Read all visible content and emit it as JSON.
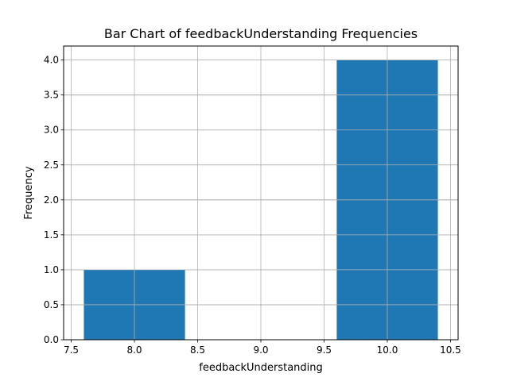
{
  "chart_data": {
    "type": "bar",
    "title": "Bar Chart of feedbackUnderstanding Frequencies",
    "xlabel": "feedbackUnderstanding",
    "ylabel": "Frequency",
    "x": [
      8,
      10
    ],
    "values": [
      1,
      4
    ],
    "bar_width": 0.8,
    "xlim": [
      7.44,
      10.56
    ],
    "ylim": [
      0,
      4.2
    ],
    "xticks": [
      7.5,
      8.0,
      8.5,
      9.0,
      9.5,
      10.0,
      10.5
    ],
    "xtick_labels": [
      "7.5",
      "8.0",
      "8.5",
      "9.0",
      "9.5",
      "10.0",
      "10.5"
    ],
    "yticks": [
      0,
      0.5,
      1.0,
      1.5,
      2.0,
      2.5,
      3.0,
      3.5,
      4.0
    ],
    "ytick_labels": [
      "0.0",
      "0.5",
      "1.0",
      "1.5",
      "2.0",
      "2.5",
      "3.0",
      "3.5",
      "4.0"
    ],
    "grid": true,
    "bar_color": "#1f77b4",
    "grid_color": "#b0b0b0"
  }
}
